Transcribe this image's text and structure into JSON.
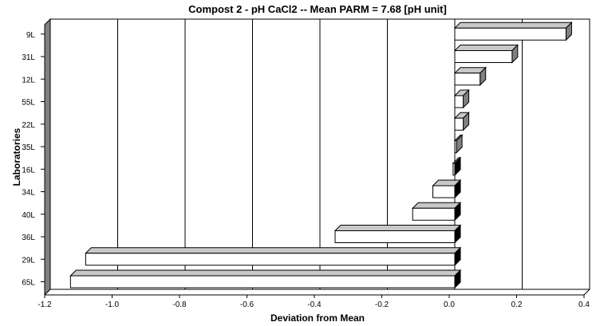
{
  "chart_data": {
    "type": "bar",
    "orientation": "horizontal",
    "title": "Compost 2 - pH CaCl2  --  Mean PARM = 7.68 [pH unit]",
    "xlabel": "Deviation from Mean",
    "ylabel": "Laboratories",
    "xlim": [
      -1.2,
      0.4
    ],
    "x_ticks": [
      -1.2,
      -1.0,
      -0.8,
      -0.6,
      -0.4,
      -0.2,
      0.0,
      0.2,
      0.4
    ],
    "x_tick_labels": [
      "-1.2",
      "-1.0",
      "-0.8",
      "-0.6",
      "-0.4",
      "-0.2",
      "0.0",
      "0.2",
      "0.4"
    ],
    "grid": "vertical",
    "categories": [
      "9L",
      "31L",
      "12L",
      "55L",
      "22L",
      "35L",
      "16L",
      "34L",
      "40L",
      "36L",
      "29L",
      "65L"
    ],
    "values": [
      0.33,
      0.17,
      0.075,
      0.025,
      0.025,
      0.005,
      -0.005,
      -0.065,
      -0.125,
      -0.355,
      -1.095,
      -1.14
    ],
    "colors": {
      "bar_face": "#ffffff",
      "bar_top": "#c8c8c8",
      "bar_side_positive": "#808080",
      "bar_side_negative": "#000000",
      "axis_wall": "#808080",
      "grid": "#000000"
    }
  }
}
